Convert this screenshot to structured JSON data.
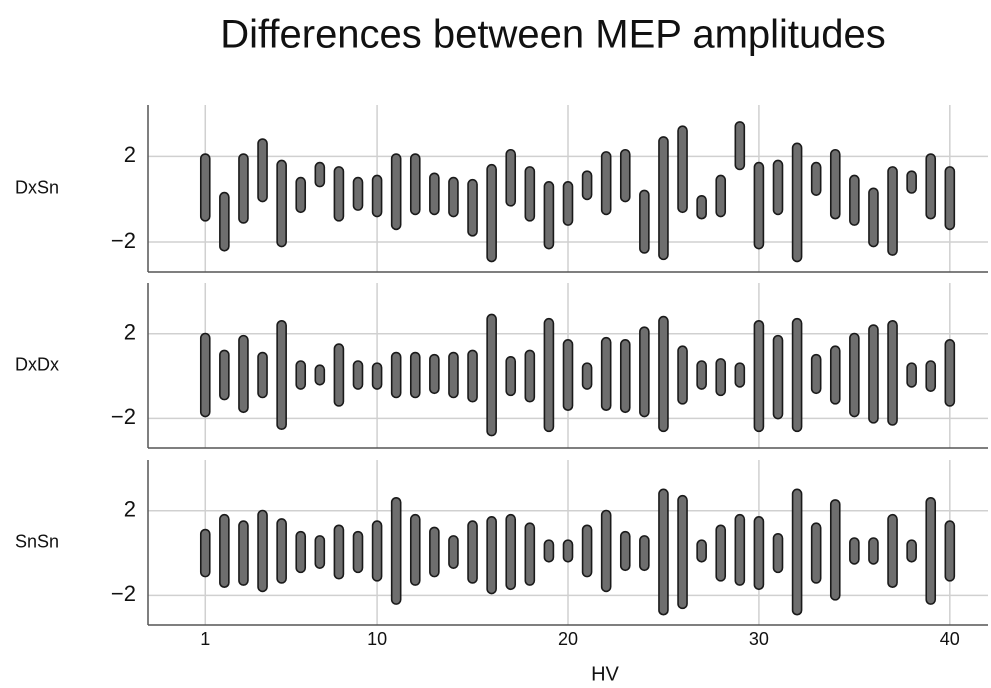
{
  "chart_data": {
    "type": "strip",
    "title": "Differences between MEP amplitudes",
    "xlabel": "HV",
    "x": [
      1,
      2,
      3,
      4,
      5,
      6,
      7,
      8,
      9,
      10,
      11,
      12,
      13,
      14,
      15,
      16,
      17,
      18,
      19,
      20,
      21,
      22,
      23,
      24,
      25,
      26,
      27,
      28,
      29,
      30,
      31,
      32,
      33,
      34,
      35,
      36,
      37,
      38,
      39,
      40
    ],
    "xlim": [
      -2,
      42
    ],
    "xticks": [
      1,
      10,
      20,
      30,
      40
    ],
    "ylim": [
      -3.4,
      4.4
    ],
    "yticks": [
      {
        "value": -2,
        "label": "−2"
      },
      2
    ],
    "grid": true,
    "color": "#6e6e6e",
    "panels": [
      {
        "label": "DxSn",
        "min": [
          -0.8,
          -2.2,
          -0.9,
          0.1,
          -2.0,
          -0.4,
          0.8,
          -0.8,
          -0.3,
          -0.6,
          -1.2,
          -0.5,
          -0.5,
          -0.6,
          -1.5,
          -2.7,
          -0.1,
          -0.8,
          -2.1,
          -1.0,
          0.2,
          -0.5,
          0.1,
          -2.3,
          -2.6,
          -0.4,
          -0.7,
          -0.6,
          1.6,
          -2.1,
          -0.5,
          -2.7,
          0.4,
          -0.7,
          -1.0,
          -2.0,
          -2.4,
          0.5,
          -0.7,
          -1.2
        ],
        "max": [
          1.9,
          0.1,
          1.9,
          2.6,
          1.6,
          0.8,
          1.5,
          1.3,
          0.8,
          0.9,
          1.9,
          1.9,
          1.0,
          0.8,
          0.7,
          1.4,
          2.1,
          1.3,
          0.6,
          0.6,
          1.1,
          2.0,
          2.1,
          0.2,
          2.7,
          3.2,
          -0.05,
          0.9,
          3.4,
          1.5,
          1.6,
          2.4,
          1.5,
          2.1,
          0.9,
          0.3,
          1.3,
          1.1,
          1.9,
          1.3
        ]
      },
      {
        "label": "DxDx",
        "min": [
          -1.7,
          -0.9,
          -1.5,
          -0.8,
          -2.3,
          -0.4,
          -0.2,
          -1.2,
          -0.4,
          -0.4,
          -0.8,
          -0.8,
          -0.6,
          -0.8,
          -1.0,
          -2.6,
          -0.7,
          -1.0,
          -2.4,
          -1.4,
          -0.4,
          -1.4,
          -1.5,
          -1.7,
          -2.4,
          -1.1,
          -0.4,
          -0.7,
          -0.3,
          -2.4,
          -1.8,
          -2.4,
          -0.6,
          -1.1,
          -1.7,
          -2.0,
          -2.1,
          -0.3,
          -0.5,
          -1.2
        ],
        "max": [
          1.8,
          1.0,
          1.7,
          0.9,
          2.4,
          0.5,
          0.3,
          1.3,
          0.5,
          0.4,
          0.9,
          0.9,
          0.8,
          0.9,
          1.0,
          2.7,
          0.7,
          1.0,
          2.5,
          1.5,
          0.4,
          1.6,
          1.5,
          2.1,
          2.6,
          1.2,
          0.5,
          0.6,
          0.4,
          2.4,
          1.7,
          2.5,
          0.8,
          1.2,
          1.8,
          2.2,
          2.4,
          0.4,
          0.5,
          1.5
        ]
      },
      {
        "label": "SnSn",
        "min": [
          -0.9,
          -1.4,
          -1.3,
          -1.6,
          -1.2,
          -0.7,
          -0.5,
          -1.0,
          -0.7,
          -1.1,
          -2.2,
          -1.3,
          -0.9,
          -0.5,
          -1.2,
          -1.7,
          -1.5,
          -1.3,
          -0.2,
          -0.2,
          -0.9,
          -1.6,
          -0.6,
          -0.6,
          -2.7,
          -2.4,
          -0.2,
          -1.1,
          -1.3,
          -1.5,
          -0.7,
          -2.7,
          -1.2,
          -2.0,
          -0.3,
          -0.3,
          -1.4,
          -0.2,
          -2.2,
          -1.1
        ],
        "max": [
          0.9,
          1.6,
          1.3,
          1.8,
          1.4,
          0.8,
          0.6,
          1.1,
          0.8,
          1.3,
          2.4,
          1.6,
          1.0,
          0.6,
          1.3,
          1.5,
          1.6,
          1.2,
          0.4,
          0.4,
          1.1,
          1.8,
          0.8,
          0.6,
          2.8,
          2.5,
          0.4,
          1.1,
          1.6,
          1.5,
          0.7,
          2.8,
          1.2,
          2.3,
          0.5,
          0.5,
          1.6,
          0.4,
          2.4,
          1.3
        ]
      }
    ]
  }
}
